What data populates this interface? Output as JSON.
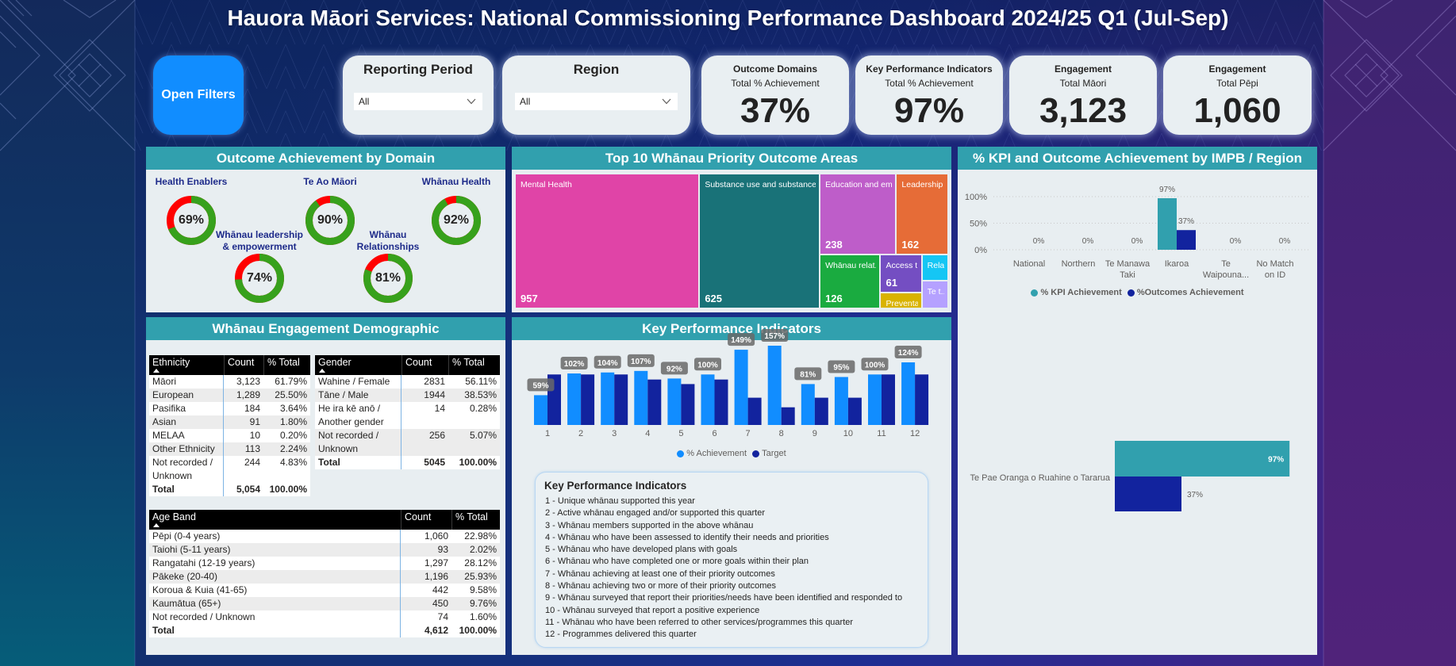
{
  "page": {
    "title": "Hauora Māori Services: National Commissioning Performance Dashboard 2024/25 Q1 (Jul-Sep)"
  },
  "filters": {
    "open_filters": {
      "label": "Open Filters"
    },
    "reporting_period": {
      "label": "Reporting Period",
      "value": "All",
      "icon": "chevron-down-icon"
    },
    "region": {
      "label": "Region",
      "value": "All",
      "icon": "chevron-down-icon"
    }
  },
  "cards": [
    {
      "title": "Outcome Domains",
      "subtitle": "Total % Achievement",
      "value": "37%"
    },
    {
      "title": "Key Performance Indicators",
      "subtitle": "Total % Achievement",
      "value": "97%"
    },
    {
      "title": "Engagement",
      "subtitle": "Total Māori",
      "value": "3,123"
    },
    {
      "title": "Engagement",
      "subtitle": "Total Pēpi",
      "value": "1,060"
    }
  ],
  "panels": {
    "outcome": {
      "title": "Outcome Achievement by Domain"
    },
    "treemap": {
      "title": "Top 10 Whānau Priority Outcome Areas"
    },
    "impb": {
      "title": "% KPI and Outcome Achievement by IMPB / Region"
    },
    "demographic": {
      "title": "Whānau Engagement Demographic"
    },
    "kpi": {
      "title": "Key Performance Indicators"
    }
  },
  "colors": {
    "brand_blue": "#118DFF",
    "header_teal": "#31A0AE",
    "panel_bg": "#E8EEF1",
    "donut_achieved": "#37A11C",
    "donut_remaining": "#FF0000",
    "domain_label": "#1E2B8A"
  },
  "demographic": {
    "ethnicity": {
      "columns": [
        "Ethnicity",
        "Count",
        "% Total"
      ],
      "sort": "ascending",
      "rows": [
        [
          "Māori",
          "3,123",
          "61.79%"
        ],
        [
          "European",
          "1,289",
          "25.50%"
        ],
        [
          "Pasifika",
          "184",
          "3.64%"
        ],
        [
          "Asian",
          "91",
          "1.80%"
        ],
        [
          "MELAA",
          "10",
          "0.20%"
        ],
        [
          "Other Ethnicity",
          "113",
          "2.24%"
        ],
        [
          "Not recorded / Unknown",
          "244",
          "4.83%"
        ]
      ],
      "total": [
        "Total",
        "5,054",
        "100.00%"
      ]
    },
    "gender": {
      "columns": [
        "Gender",
        "Count",
        "% Total"
      ],
      "sort": "ascending",
      "rows": [
        [
          "Wahine / Female",
          "2831",
          "56.11%"
        ],
        [
          "Tāne / Male",
          "1944",
          "38.53%"
        ],
        [
          "He ira kē anō / Another gender",
          "14",
          "0.28%"
        ],
        [
          "Not recorded / Unknown",
          "256",
          "5.07%"
        ]
      ],
      "total": [
        "Total",
        "5045",
        "100.00%"
      ]
    },
    "age_band": {
      "columns": [
        "Age Band",
        "Count",
        "% Total"
      ],
      "sort": "ascending",
      "rows": [
        [
          "Pēpi (0-4 years)",
          "1,060",
          "22.98%"
        ],
        [
          "Taiohi (5-11 years)",
          "93",
          "2.02%"
        ],
        [
          "Rangatahi (12-19 years)",
          "1,297",
          "28.12%"
        ],
        [
          "Pākeke (20-40)",
          "1,196",
          "25.93%"
        ],
        [
          "Koroua & Kuia (41-65)",
          "442",
          "9.58%"
        ],
        [
          "Kaumātua (65+)",
          "450",
          "9.76%"
        ],
        [
          "Not recorded / Unknown",
          "74",
          "1.60%"
        ]
      ],
      "total": [
        "Total",
        "4,612",
        "100.00%"
      ]
    }
  },
  "kpi_legend_box": {
    "title": "Key Performance Indicators",
    "items": [
      "1 - Unique whānau supported this year",
      "2 - Active whānau engaged and/or supported this quarter",
      "3 - Whānau members supported in the above whānau",
      "4 - Whānau who have been assessed to identify their needs and priorities",
      "5 - Whānau who have developed plans with goals",
      "6 - Whānau who have completed one or more goals within their plan",
      "7 - Whānau achieving at least one of their priority outcomes",
      "8 - Whānau achieving two or more of their priority outcomes",
      "9 - Whānau surveyed that report their priorities/needs have been identified and responded to",
      "10 - Whānau surveyed that report a positive experience",
      "11 - Whānau who have been referred to other services/programmes this quarter",
      "12 - Programmes delivered this quarter"
    ]
  },
  "chart_data": [
    {
      "id": "outcome-achievement-by-domain",
      "type": "pie",
      "variant": "donut",
      "title": "Outcome Achievement by Domain",
      "categories": [
        "Health Enablers",
        "Te Ao Māori",
        "Whānau Health",
        "Whānau leadership & empowerment",
        "Whānau Relationships"
      ],
      "values": [
        69,
        90,
        92,
        74,
        81
      ],
      "labels": [
        "69%",
        "90%",
        "92%",
        "74%",
        "81%"
      ],
      "segments": [
        "Achieved",
        "Not achieved"
      ],
      "unit": "%"
    },
    {
      "id": "top-10-whanau-priority-outcome-areas",
      "type": "treemap",
      "title": "Top 10 Whānau Priority Outcome Areas",
      "items": [
        {
          "label": "Mental Health",
          "value": 957,
          "value_label": "957",
          "color": "#E044A7"
        },
        {
          "label": "Substance use and substance-r...",
          "value": 625,
          "value_label": "625",
          "color": "#197278"
        },
        {
          "label": "Education and em...",
          "value": 238,
          "value_label": "238",
          "color": "#BE5DC9"
        },
        {
          "label": "Leadership ...",
          "value": 162,
          "value_label": "162",
          "color": "#E66C37"
        },
        {
          "label": "Whānau relat...",
          "value": 126,
          "value_label": "126",
          "color": "#1AAB40"
        },
        {
          "label": "Access t...",
          "value": 61,
          "value_label": "61",
          "color": "#744EC2"
        },
        {
          "label": "Preventa...",
          "value": 25,
          "value_label": null,
          "value_estimated": true,
          "color": "#D9B300"
        },
        {
          "label": "Rela...",
          "value": 27,
          "value_label": null,
          "value_estimated": true,
          "color": "#15C6F4"
        },
        {
          "label": "Te t...",
          "value": 28,
          "value_label": null,
          "value_estimated": true,
          "color": "#B5A1FF"
        }
      ]
    },
    {
      "id": "key-performance-indicators",
      "type": "bar",
      "title": "Key Performance Indicators",
      "categories": [
        "1",
        "2",
        "3",
        "4",
        "5",
        "6",
        "7",
        "8",
        "9",
        "10",
        "11",
        "12"
      ],
      "series": [
        {
          "name": "% Achievement",
          "values": [
            59,
            102,
            104,
            107,
            92,
            100,
            149,
            157,
            81,
            95,
            100,
            124
          ],
          "color": "#118DFF"
        },
        {
          "name": "Target",
          "values": [
            100,
            100,
            100,
            90,
            81,
            90,
            54,
            35,
            54,
            54,
            100,
            100
          ],
          "values_estimated": true,
          "color": "#12239E"
        }
      ],
      "data_labels": [
        "59%",
        "102%",
        "104%",
        "107%",
        "92%",
        "100%",
        "149%",
        "157%",
        "81%",
        "95%",
        "100%",
        "124%"
      ],
      "xlabel": "",
      "ylabel": "",
      "unit": "%",
      "grid": false,
      "legend": "bottom"
    },
    {
      "id": "kpi-and-outcome-achievement-by-impb-region",
      "type": "bar",
      "title": "% KPI and Outcome Achievement by IMPB / Region",
      "categories": [
        "National",
        "Northern",
        "Te Manawa Taki",
        "Ikaroa",
        "Te Waipouna...",
        "No Match on ID"
      ],
      "series": [
        {
          "name": "% KPI Achievement",
          "values": [
            0,
            0,
            0,
            97,
            0,
            0
          ],
          "data_labels": [
            "0%",
            "0%",
            "0%",
            "97%",
            "0%",
            "0%"
          ],
          "color": "#31A0AE"
        },
        {
          "name": "%Outcomes Achievement",
          "values": [
            0,
            0,
            0,
            37,
            0,
            0
          ],
          "data_labels": [
            "0%",
            "0%",
            "0%",
            "37%",
            "0%",
            "0%"
          ],
          "color": "#12239E"
        }
      ],
      "yticks": [
        "0%",
        "50%",
        "100%"
      ],
      "ytick_values": [
        0,
        50,
        100
      ],
      "ylim": [
        0,
        100
      ],
      "grid": true,
      "legend": "bottom"
    },
    {
      "id": "kpi-and-outcome-achievement-by-provider",
      "type": "bar",
      "orientation": "horizontal",
      "categories": [
        "Te Pae Oranga o Ruahine o Tararua"
      ],
      "series": [
        {
          "name": "% KPI Achievement",
          "values": [
            97
          ],
          "data_labels": [
            "97%"
          ],
          "color": "#31A0AE"
        },
        {
          "name": "%Outcomes Achievement",
          "values": [
            37
          ],
          "data_labels": [
            "37%"
          ],
          "color": "#12239E"
        }
      ]
    }
  ]
}
